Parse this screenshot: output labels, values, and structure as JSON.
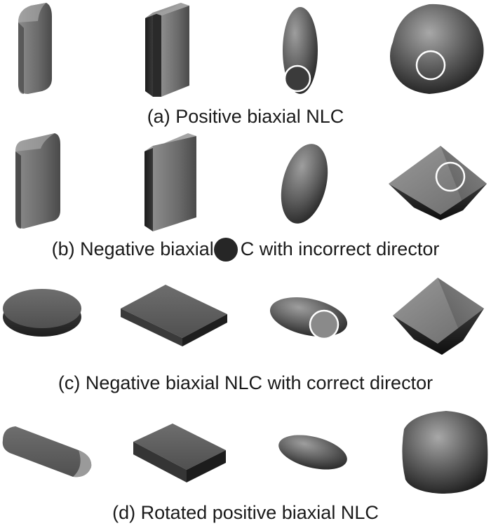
{
  "figure": {
    "rows": [
      {
        "id": "a",
        "caption": "(a) Positive biaxial NLC"
      },
      {
        "id": "b",
        "caption": "(b) Negative biaxial",
        "caption_tail": "C with incorrect director"
      },
      {
        "id": "c",
        "caption": "(c) Negative biaxial NLC with correct director"
      },
      {
        "id": "d",
        "caption": "(d) Rotated positive biaxial NLC"
      }
    ],
    "shape_columns": [
      "rounded-box",
      "box",
      "ellipsoid",
      "superquadric"
    ],
    "colors": {
      "shape_light": "#9a9a9a",
      "shape_mid": "#5f5f5f",
      "shape_dark": "#262626",
      "marker_ring": "#ffffff",
      "marker_fill_dark": "#3b3b3b",
      "marker_fill_light": "#8a8a8a"
    }
  }
}
